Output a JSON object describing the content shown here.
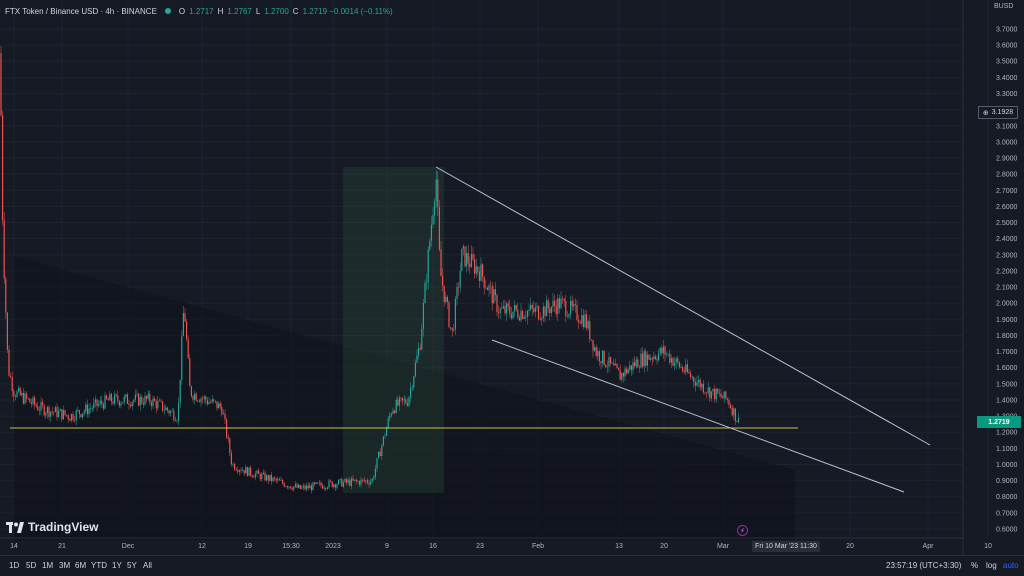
{
  "header": {
    "symbol": "FTX Token / Binance USD · 4h · BINANCE",
    "o_label": "O",
    "o_value": "1.2717",
    "h_label": "H",
    "h_value": "1.2767",
    "l_label": "L",
    "l_value": "1.2700",
    "c_label": "C",
    "c_value": "1.2719 −0.0014 (−0.11%)"
  },
  "axis": {
    "currency": "BUSD",
    "current_price": "1.2719",
    "hover_price": "3.1928"
  },
  "time_labels": [
    "14",
    "21",
    "Dec",
    "12",
    "19",
    "15:30",
    "2023",
    "9",
    "16",
    "23",
    "Feb",
    "13",
    "20",
    "Mar",
    "20",
    "Apr",
    "10"
  ],
  "time_highlight": "Fri 10 Mar '23   11:30",
  "bottom": {
    "timeframes": [
      "1D",
      "5D",
      "1M",
      "3M",
      "6M",
      "YTD",
      "1Y",
      "5Y",
      "All"
    ],
    "clock": "23:57:19 (UTC+3:30)",
    "percent": "%",
    "log": "log",
    "auto": "auto"
  },
  "logo_text": "TradingView",
  "colors": {
    "up": "#26a69a",
    "down": "#ef5350",
    "trend": "#b8c3d6",
    "support": "#c9c04a",
    "bg": "#161a25"
  },
  "chart_data": {
    "type": "candlestick",
    "title": "FTX Token / Binance USD · 4h · BINANCE",
    "y_ticks": [
      0.6,
      0.7,
      0.8,
      0.9,
      1.0,
      1.1,
      1.2,
      1.3,
      1.4,
      1.5,
      1.6,
      1.7,
      1.8,
      1.9,
      2.0,
      2.1,
      2.2,
      2.3,
      2.4,
      2.5,
      2.6,
      2.7,
      2.8,
      2.9,
      3.0,
      3.1,
      3.2,
      3.3,
      3.4,
      3.5,
      3.6,
      3.7
    ],
    "ylim": [
      0.55,
      3.85
    ],
    "scale": "linear",
    "price_path": [
      {
        "x": "Nov 14",
        "close": 3.55
      },
      {
        "x": "Nov 15",
        "close": 2.4
      },
      {
        "x": "Nov 16",
        "close": 1.6
      },
      {
        "x": "Nov 17",
        "close": 1.45
      },
      {
        "x": "Nov 21",
        "close": 1.35
      },
      {
        "x": "Nov 25",
        "close": 1.3
      },
      {
        "x": "Dec 1",
        "close": 1.4
      },
      {
        "x": "Dec 5",
        "close": 1.4
      },
      {
        "x": "Dec 9",
        "close": 1.3
      },
      {
        "x": "Dec 10",
        "close": 2.0
      },
      {
        "x": "Dec 12",
        "close": 1.45
      },
      {
        "x": "Dec 15",
        "close": 1.35
      },
      {
        "x": "Dec 16",
        "close": 1.0
      },
      {
        "x": "Dec 20",
        "close": 0.95
      },
      {
        "x": "Dec 25",
        "close": 0.9
      },
      {
        "x": "Dec 30",
        "close": 0.85
      },
      {
        "x": "Jan 5",
        "close": 0.88
      },
      {
        "x": "Jan 9",
        "close": 0.9
      },
      {
        "x": "Jan 10",
        "close": 1.35
      },
      {
        "x": "Jan 12",
        "close": 1.4
      },
      {
        "x": "Jan 14",
        "close": 1.75
      },
      {
        "x": "Jan 16",
        "close": 2.8
      },
      {
        "x": "Jan 17",
        "close": 2.2
      },
      {
        "x": "Jan 18",
        "close": 1.8
      },
      {
        "x": "Jan 20",
        "close": 2.3
      },
      {
        "x": "Jan 23",
        "close": 2.2
      },
      {
        "x": "Jan 26",
        "close": 1.95
      },
      {
        "x": "Feb 1",
        "close": 1.95
      },
      {
        "x": "Feb 5",
        "close": 2.0
      },
      {
        "x": "Feb 9",
        "close": 1.9
      },
      {
        "x": "Feb 10",
        "close": 1.7
      },
      {
        "x": "Feb 13",
        "close": 1.55
      },
      {
        "x": "Feb 16",
        "close": 1.65
      },
      {
        "x": "Feb 20",
        "close": 1.7
      },
      {
        "x": "Feb 23",
        "close": 1.55
      },
      {
        "x": "Feb 27",
        "close": 1.45
      },
      {
        "x": "Mar 2",
        "close": 1.4
      },
      {
        "x": "Mar 3",
        "close": 1.27
      }
    ],
    "support_level": 1.22,
    "current_price": 1.2719
  }
}
